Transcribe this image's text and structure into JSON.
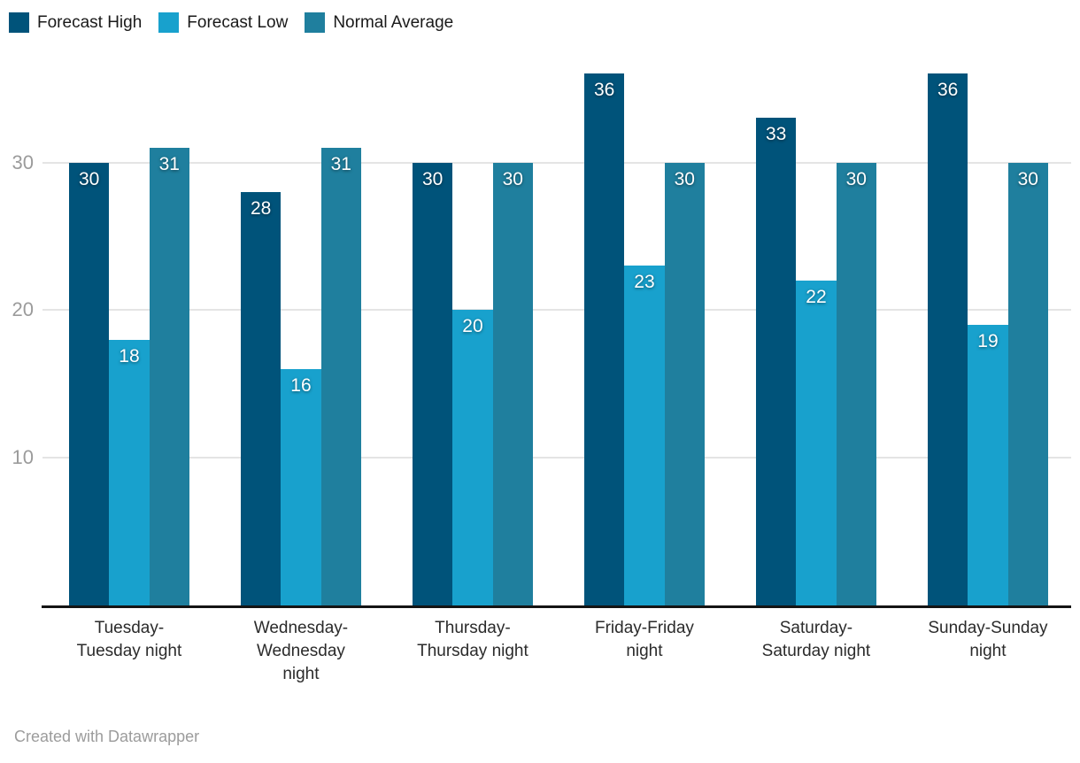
{
  "chart_data": {
    "type": "bar",
    "title": "",
    "categories": [
      "Tuesday-Tuesday night",
      "Wednesday-Wednesday night",
      "Thursday-Thursday night",
      "Friday-Friday night",
      "Saturday-Saturday night",
      "Sunday-Sunday night"
    ],
    "category_display": [
      "Tuesday-\nTuesday night",
      "Wednesday-\nWednesday\nnight",
      "Thursday-\nThursday night",
      "Friday-Friday\nnight",
      "Saturday-\nSaturday night",
      "Sunday-Sunday\nnight"
    ],
    "series": [
      {
        "name": "Forecast High",
        "color": "#00537a",
        "values": [
          30,
          28,
          30,
          36,
          33,
          36
        ]
      },
      {
        "name": "Forecast Low",
        "color": "#18a1cd",
        "values": [
          18,
          16,
          20,
          23,
          22,
          19
        ]
      },
      {
        "name": "Normal Average",
        "color": "#1f7f9e",
        "values": [
          31,
          31,
          30,
          30,
          30,
          30
        ]
      }
    ],
    "yticks": [
      10,
      20,
      30
    ],
    "ylim": [
      0,
      36
    ],
    "grid": true,
    "legend_position": "top-left",
    "value_labels": true,
    "colors": {
      "value_label": "#ffffff",
      "tick_label": "#9b9b9b",
      "gridline": "#e4e4e4",
      "axis_line": "#141414",
      "category_label": "#2b2b2b",
      "legend_label": "#1a1a1a",
      "footer": "#9c9c9c"
    }
  },
  "footer": {
    "credit": "Created with Datawrapper"
  }
}
